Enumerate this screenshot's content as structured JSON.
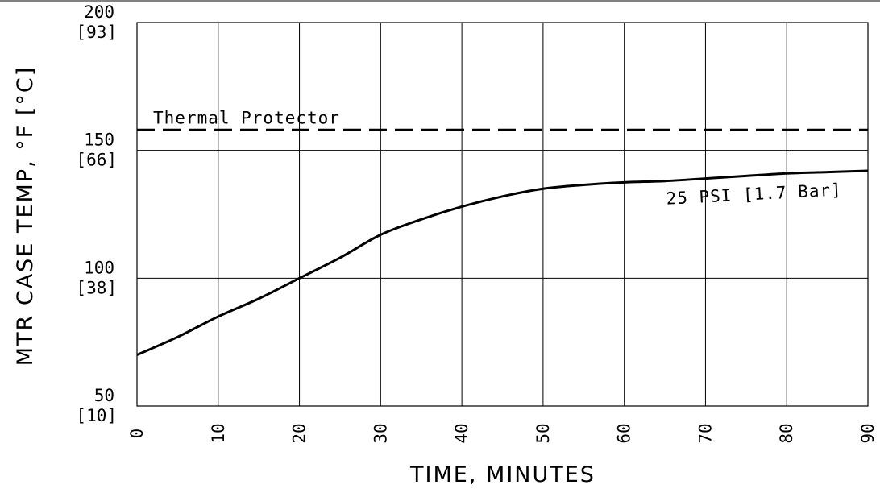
{
  "chart_data": {
    "type": "line",
    "xlabel": "TIME, MINUTES",
    "ylabel": "MTR CASE TEMP, °F [°C]",
    "xlim": [
      0,
      90
    ],
    "ylim": [
      50,
      200
    ],
    "grid": true,
    "x_ticks": [
      "0",
      "10",
      "20",
      "30",
      "40",
      "50",
      "60",
      "70",
      "80",
      "90"
    ],
    "y_ticks": [
      {
        "value": 200,
        "f": "200",
        "c": "[93]"
      },
      {
        "value": 150,
        "f": "150",
        "c": "[66]"
      },
      {
        "value": 100,
        "f": "100",
        "c": "[38]"
      },
      {
        "value": 50,
        "f": "50",
        "c": "[10]"
      }
    ],
    "series": [
      {
        "name": "25 PSI [1.7 Bar]",
        "x": [
          0,
          5,
          10,
          15,
          20,
          25,
          30,
          35,
          40,
          45,
          50,
          55,
          60,
          65,
          70,
          75,
          80,
          85,
          90
        ],
        "y": [
          70,
          77,
          85,
          92,
          100,
          108,
          117,
          123,
          128,
          132,
          135,
          136.5,
          137.5,
          138,
          139,
          140,
          141,
          141.5,
          142
        ]
      }
    ],
    "reference_lines": [
      {
        "label": "Thermal Protector",
        "y": 158,
        "style": "dashed"
      }
    ]
  }
}
